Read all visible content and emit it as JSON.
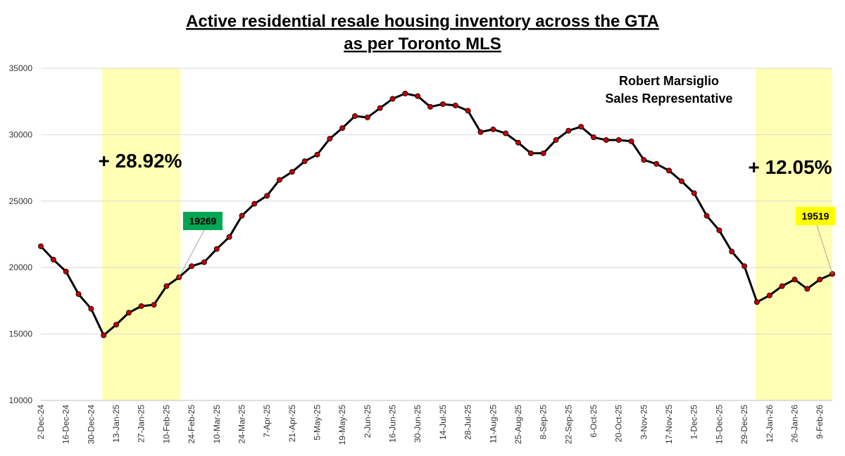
{
  "chart_data": {
    "type": "line",
    "title_line1": "Active residential resale housing inventory across the GTA",
    "title_line2": "as per Toronto MLS",
    "credit_line1": "Robert Marsiglio",
    "credit_line2": "Sales Representative",
    "ylim": [
      10000,
      35000
    ],
    "yticks": [
      10000,
      15000,
      20000,
      25000,
      30000,
      35000
    ],
    "ytick_labels": [
      "10000",
      "15000",
      "20000",
      "25000",
      "30000",
      "35000"
    ],
    "x": [
      "2-Dec-24",
      "9-Dec-24",
      "16-Dec-24",
      "23-Dec-24",
      "30-Dec-24",
      "6-Jan-25",
      "13-Jan-25",
      "20-Jan-25",
      "27-Jan-25",
      "3-Feb-25",
      "10-Feb-25",
      "17-Feb-25",
      "24-Feb-25",
      "3-Mar-25",
      "10-Mar-25",
      "17-Mar-25",
      "24-Mar-25",
      "31-Mar-25",
      "7-Apr-25",
      "14-Apr-25",
      "21-Apr-25",
      "28-Apr-25",
      "5-May-25",
      "12-May-25",
      "19-May-25",
      "26-May-25",
      "2-Jun-25",
      "9-Jun-25",
      "16-Jun-25",
      "23-Jun-25",
      "30-Jun-25",
      "7-Jul-25",
      "14-Jul-25",
      "21-Jul-25",
      "28-Jul-25",
      "4-Aug-25",
      "11-Aug-25",
      "18-Aug-25",
      "25-Aug-25",
      "1-Sep-25",
      "8-Sep-25",
      "15-Sep-25",
      "22-Sep-25",
      "29-Sep-25",
      "6-Oct-25",
      "13-Oct-25",
      "20-Oct-25",
      "27-Oct-25",
      "3-Nov-25",
      "10-Nov-25",
      "17-Nov-25",
      "24-Nov-25",
      "1-Dec-25",
      "8-Dec-25",
      "15-Dec-25",
      "22-Dec-25",
      "29-Dec-25",
      "5-Jan-26",
      "12-Jan-26",
      "19-Jan-26",
      "26-Jan-26",
      "2-Feb-26",
      "9-Feb-26",
      "16-Feb-26"
    ],
    "xtick_labels": [
      "2-Dec-24",
      "16-Dec-24",
      "30-Dec-24",
      "13-Jan-25",
      "27-Jan-25",
      "10-Feb-25",
      "24-Feb-25",
      "10-Mar-25",
      "24-Mar-25",
      "7-Apr-25",
      "21-Apr-25",
      "5-May-25",
      "19-May-25",
      "2-Jun-25",
      "16-Jun-25",
      "30-Jun-25",
      "14-Jul-25",
      "28-Jul-25",
      "11-Aug-25",
      "25-Aug-25",
      "8-Sep-25",
      "22-Sep-25",
      "6-Oct-25",
      "20-Oct-25",
      "3-Nov-25",
      "17-Nov-25",
      "1-Dec-25",
      "15-Dec-25",
      "29-Dec-25",
      "12-Jan-26",
      "26-Jan-26",
      "9-Feb-26"
    ],
    "series": [
      {
        "values": [
          21600,
          20600,
          19700,
          18000,
          16900,
          14900,
          15700,
          16600,
          17100,
          17200,
          18600,
          19269,
          20100,
          20400,
          21400,
          22300,
          23900,
          24800,
          25400,
          26600,
          27200,
          28000,
          28500,
          29700,
          30500,
          31400,
          31300,
          32000,
          32700,
          33100,
          32900,
          32100,
          32300,
          32200,
          31800,
          30200,
          30400,
          30100,
          29400,
          28600,
          28600,
          29600,
          30300,
          30600,
          29800,
          29600,
          29600,
          29500,
          28100,
          27800,
          27300,
          26500,
          25600,
          23900,
          22800,
          21200,
          20100,
          17400,
          17900,
          18600,
          19100,
          18400,
          19100,
          19519
        ],
        "color": "#000000",
        "marker_color": "#c00000"
      }
    ],
    "highlight_regions": [
      {
        "from": "6-Jan-25",
        "to": "17-Feb-25",
        "color": "#ffffb3"
      },
      {
        "from": "5-Jan-26",
        "to": "16-Feb-26",
        "color": "#ffffb3"
      }
    ],
    "annotations": [
      {
        "text": "+ 28.92%"
      },
      {
        "text": "+ 12.05%"
      }
    ],
    "callouts": [
      {
        "text": "19269",
        "point_index": 11,
        "bg": "#00a651",
        "fg": "#000000"
      },
      {
        "text": "19519",
        "point_index": 63,
        "bg": "#ffff00",
        "fg": "#000000"
      }
    ],
    "grid": true,
    "legend": "none"
  }
}
